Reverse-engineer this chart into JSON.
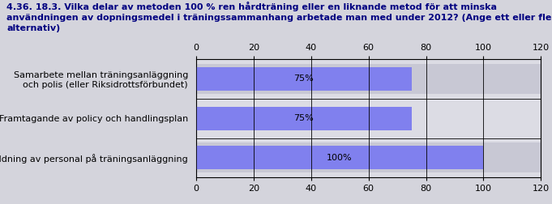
{
  "title": "4.36. 18.3. Vilka delar av metoden 100 % ren hårdträning eller en liknande metod för att minska\nanvändningen av dopningsmedel i träningssammanhang arbetade man med under 2012? (Ange ett eller flera\nalternativ)",
  "categories": [
    "Utbildning av personal på träningsanläggning",
    "Framtagande av policy och handlingsplan",
    "Samarbete mellan träningsanläggning\noch polis (eller Riksidrottsförbundet)"
  ],
  "values": [
    100,
    75,
    75
  ],
  "bar_color": "#8080ee",
  "background_color": "#d4d4dc",
  "row_dark_color": "#c8c8d4",
  "row_light_color": "#dcdce4",
  "plot_right_color": "#dcdce8",
  "xlim": [
    0,
    120
  ],
  "xticks": [
    0,
    20,
    40,
    60,
    80,
    100,
    120
  ],
  "title_fontsize": 8,
  "label_fontsize": 8,
  "tick_fontsize": 8,
  "bar_label_fontsize": 8,
  "title_color": "#000080",
  "bar_height": 0.6
}
